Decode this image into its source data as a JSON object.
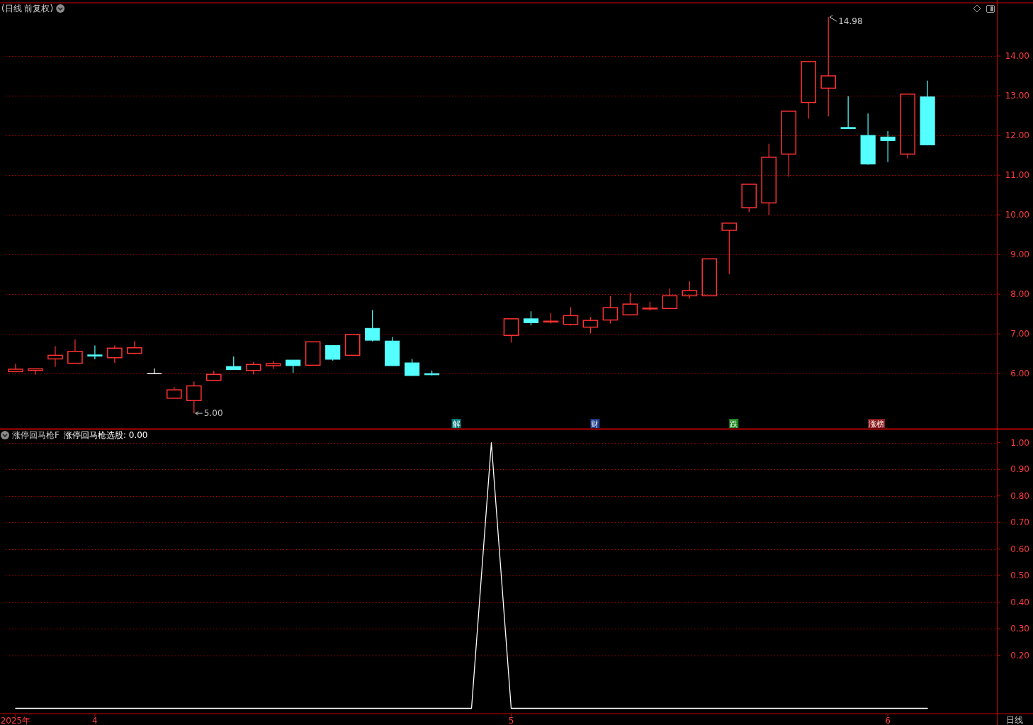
{
  "chart_data": [
    {
      "type": "candlestick",
      "title": "(日线 前复权)",
      "categories": [
        null,
        null,
        null,
        null,
        null,
        null,
        null,
        null,
        null,
        null,
        null,
        null,
        null,
        null,
        null,
        null,
        null,
        null,
        null,
        null,
        null,
        null,
        null,
        null,
        null,
        null,
        null,
        null,
        null,
        null,
        null,
        null,
        null,
        null,
        null,
        null,
        null,
        null,
        null,
        null,
        null,
        null,
        null,
        null,
        null,
        null,
        null,
        null,
        null,
        null
      ],
      "ohlc": [
        [
          6.05,
          6.25,
          6.04,
          6.11
        ],
        [
          6.08,
          6.12,
          5.97,
          6.12
        ],
        [
          6.37,
          6.69,
          6.17,
          6.46
        ],
        [
          6.26,
          6.86,
          6.26,
          6.56
        ],
        [
          6.47,
          6.71,
          6.36,
          6.44
        ],
        [
          6.4,
          6.71,
          6.27,
          6.64
        ],
        [
          6.51,
          6.82,
          6.49,
          6.65
        ],
        [
          6.0,
          6.13,
          6.0,
          6.0
        ],
        [
          5.38,
          5.66,
          5.38,
          5.59
        ],
        [
          5.32,
          5.8,
          5.0,
          5.69
        ],
        [
          5.83,
          6.07,
          5.83,
          5.98
        ],
        [
          6.18,
          6.43,
          6.1,
          6.1
        ],
        [
          6.08,
          6.29,
          5.98,
          6.23
        ],
        [
          6.2,
          6.32,
          6.12,
          6.25
        ],
        [
          6.34,
          6.34,
          6.02,
          6.2
        ],
        [
          6.21,
          6.8,
          6.21,
          6.8
        ],
        [
          6.71,
          6.71,
          6.33,
          6.36
        ],
        [
          6.46,
          6.98,
          6.46,
          6.98
        ],
        [
          7.14,
          7.6,
          6.81,
          6.84
        ],
        [
          6.82,
          6.92,
          6.19,
          6.2
        ],
        [
          6.27,
          6.37,
          5.94,
          5.95
        ],
        [
          6.0,
          6.08,
          5.96,
          5.97
        ],
        null,
        null,
        null,
        [
          6.96,
          7.38,
          6.78,
          7.38
        ],
        [
          7.38,
          7.57,
          7.21,
          7.28
        ],
        [
          7.3,
          7.52,
          7.26,
          7.32
        ],
        [
          7.24,
          7.67,
          7.21,
          7.46
        ],
        [
          7.17,
          7.42,
          7.01,
          7.34
        ],
        [
          7.35,
          7.95,
          7.26,
          7.66
        ],
        [
          7.48,
          8.04,
          7.46,
          7.75
        ],
        [
          7.63,
          7.81,
          7.59,
          7.65
        ],
        [
          7.64,
          8.15,
          7.63,
          7.96
        ],
        [
          7.96,
          8.33,
          7.89,
          8.09
        ],
        [
          7.96,
          8.89,
          7.96,
          8.89
        ],
        [
          9.61,
          9.79,
          8.51,
          9.79
        ],
        [
          10.18,
          10.77,
          10.07,
          10.77
        ],
        [
          10.3,
          11.79,
          10.0,
          11.45
        ],
        [
          11.53,
          12.61,
          10.96,
          12.61
        ],
        [
          12.83,
          13.86,
          12.42,
          13.86
        ],
        [
          13.19,
          14.98,
          12.48,
          13.5
        ],
        [
          12.2,
          12.99,
          12.17,
          12.17
        ],
        [
          12.0,
          12.55,
          11.26,
          11.28
        ],
        [
          11.96,
          12.11,
          11.33,
          11.87
        ],
        [
          11.53,
          13.04,
          11.42,
          13.04
        ],
        [
          12.97,
          13.38,
          11.76,
          11.76
        ],
        null,
        null,
        null
      ],
      "colors": [
        "#ff3232",
        "#ff3232",
        "#ff3232",
        "#ff3232",
        "#54ffff",
        "#ff3232",
        "#ff3232",
        "#ffffff",
        "#ff3232",
        "#ff3232",
        "#ff3232",
        "#54ffff",
        "#ff3232",
        "#ff3232",
        "#54ffff",
        "#ff3232",
        "#54ffff",
        "#ff3232",
        "#54ffff",
        "#54ffff",
        "#54ffff",
        "#54ffff",
        null,
        null,
        null,
        "#ff3232",
        "#54ffff",
        "#ff3232",
        "#ff3232",
        "#ff3232",
        "#ff3232",
        "#ff3232",
        "#ff3232",
        "#ff3232",
        "#ff3232",
        "#ff3232",
        "#ff3232",
        "#ff3232",
        "#ff3232",
        "#ff3232",
        "#ff3232",
        "#ff3232",
        "#54ffff",
        "#54ffff",
        "#54ffff",
        "#ff3232",
        "#54ffff",
        null,
        null,
        null
      ],
      "ylim": [
        4.61,
        15.34
      ],
      "yticks": [
        {
          "value": 6,
          "label": "6.00"
        },
        {
          "value": 7,
          "label": "7.00"
        },
        {
          "value": 8,
          "label": "8.00"
        },
        {
          "value": 9,
          "label": "9.00"
        },
        {
          "value": 10,
          "label": "10.00"
        },
        {
          "value": 11,
          "label": "11.00"
        },
        {
          "value": 12,
          "label": "12.00"
        },
        {
          "value": 13,
          "label": "13.00"
        },
        {
          "value": 14,
          "label": "14.00"
        }
      ],
      "grid": "y",
      "tick_labels": "y",
      "annotations": [
        "14.98",
        "5.00",
        "解",
        "财",
        "跌",
        "涨榜"
      ]
    },
    {
      "type": "line",
      "title": "涨停回马枪F",
      "categories": [
        "2025年",
        null,
        null,
        null,
        "4",
        null,
        null,
        null,
        null,
        null,
        null,
        null,
        null,
        null,
        null,
        null,
        null,
        null,
        null,
        null,
        null,
        null,
        null,
        null,
        null,
        "5",
        null,
        null,
        null,
        null,
        null,
        null,
        null,
        null,
        null,
        null,
        null,
        null,
        null,
        null,
        null,
        null,
        null,
        null,
        "6",
        null,
        null,
        null,
        null,
        null
      ],
      "series": [
        {
          "name": "涨停回马枪选股: 0.00",
          "color": "#ffffff",
          "values": [
            0,
            0,
            0,
            0,
            0,
            0,
            0,
            0,
            0,
            0,
            0,
            0,
            0,
            0,
            0,
            0,
            0,
            0,
            0,
            0,
            0,
            0,
            0,
            0,
            1,
            0,
            0,
            0,
            0,
            0,
            0,
            0,
            0,
            0,
            0,
            0,
            0,
            0,
            0,
            0,
            0,
            0,
            0,
            0,
            0,
            0,
            0,
            null,
            null,
            null
          ]
        }
      ],
      "ylim": [
        -0.02,
        1.05
      ],
      "yticks": [
        {
          "value": 0.2,
          "label": "0.20"
        },
        {
          "value": 0.3,
          "label": "0.30"
        },
        {
          "value": 0.4,
          "label": "0.40"
        },
        {
          "value": 0.5,
          "label": "0.50"
        },
        {
          "value": 0.6,
          "label": "0.60"
        },
        {
          "value": 0.7,
          "label": "0.70"
        },
        {
          "value": 0.8,
          "label": "0.80"
        },
        {
          "value": 0.9,
          "label": "0.90"
        },
        {
          "value": 1.0,
          "label": "1.00"
        }
      ],
      "grid": "y",
      "annotations": [
        "日线"
      ]
    }
  ]
}
